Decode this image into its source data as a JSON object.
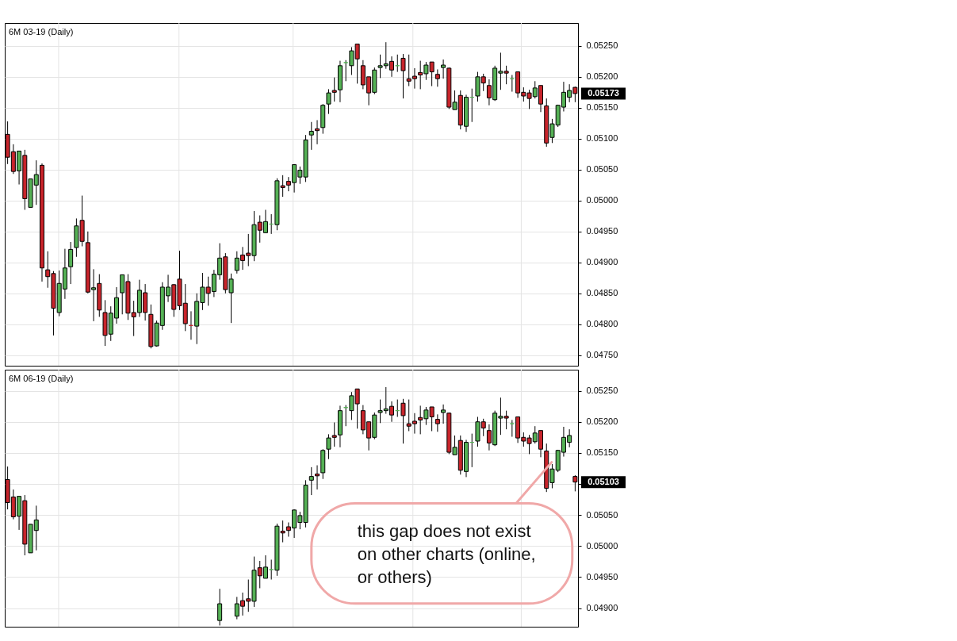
{
  "chart_data": [
    {
      "type": "candlestick",
      "title": "6M 03-19 (Daily)",
      "categories": [
        null,
        null,
        null,
        null,
        null,
        null,
        null,
        null,
        null,
        null,
        null,
        null,
        null,
        null,
        null,
        null,
        null,
        null,
        null,
        null,
        null,
        null,
        null,
        null,
        null,
        null,
        null,
        null,
        null,
        null,
        null,
        null,
        null,
        null,
        null,
        null,
        null,
        null,
        null,
        null,
        null,
        null,
        null,
        null,
        null,
        null,
        null,
        null,
        null,
        null,
        null,
        null,
        null,
        null,
        null,
        null,
        null,
        null,
        null,
        null,
        null,
        null,
        null,
        null,
        null,
        null,
        null,
        null,
        null,
        null,
        null,
        null,
        null,
        null,
        null,
        null,
        null,
        null,
        null,
        null,
        null,
        null,
        null,
        null,
        null,
        null,
        null,
        null,
        null,
        null,
        null,
        null,
        null,
        null,
        null,
        null,
        null,
        null,
        null,
        null
      ],
      "ohlc": [
        [
          0.05107,
          0.05128,
          0.05059,
          0.0507
        ],
        [
          0.05079,
          0.05091,
          0.05043,
          0.05047
        ],
        [
          0.05048,
          0.0508,
          0.05026,
          0.0508
        ],
        [
          0.05073,
          0.05082,
          0.04985,
          0.05003
        ],
        [
          0.04989,
          0.05035,
          0.04989,
          0.05035
        ],
        [
          0.05025,
          0.05065,
          0.04993,
          0.05042
        ],
        [
          0.05057,
          0.0506,
          0.04869,
          0.04891
        ],
        [
          0.04888,
          0.04918,
          0.04859,
          0.04877
        ],
        [
          0.04882,
          0.04886,
          0.04782,
          0.04826
        ],
        [
          0.04819,
          0.04887,
          0.04813,
          0.04866
        ],
        [
          0.04857,
          0.04922,
          0.04841,
          0.04891
        ],
        [
          0.04893,
          0.04933,
          0.04865,
          0.04921
        ],
        [
          0.04924,
          0.04971,
          0.04909,
          0.04959
        ],
        [
          0.04968,
          0.05008,
          0.04926,
          0.04934
        ],
        [
          0.04932,
          0.0495,
          0.0485,
          0.04852
        ],
        [
          0.04856,
          0.04889,
          0.04805,
          0.04859
        ],
        [
          0.04866,
          0.04881,
          0.04812,
          0.04823
        ],
        [
          0.04819,
          0.04839,
          0.04765,
          0.04782
        ],
        [
          0.04784,
          0.04829,
          0.04773,
          0.04818
        ],
        [
          0.0481,
          0.0486,
          0.04801,
          0.04843
        ],
        [
          0.04851,
          0.0488,
          0.04816,
          0.0488
        ],
        [
          0.04869,
          0.04881,
          0.04807,
          0.04818
        ],
        [
          0.04819,
          0.04838,
          0.04781,
          0.04812
        ],
        [
          0.04819,
          0.04872,
          0.04812,
          0.04855
        ],
        [
          0.04851,
          0.04865,
          0.04806,
          0.04819
        ],
        [
          0.04816,
          0.04832,
          0.04761,
          0.04764
        ],
        [
          0.04765,
          0.04806,
          0.04764,
          0.04802
        ],
        [
          0.04798,
          0.04868,
          0.04791,
          0.0486
        ],
        [
          0.04846,
          0.0488,
          0.04836,
          0.0486
        ],
        [
          0.04864,
          0.04865,
          0.04812,
          0.04824
        ],
        [
          0.04873,
          0.04919,
          0.04823,
          0.0483
        ],
        [
          0.04834,
          0.04865,
          0.04789,
          0.04801
        ],
        [
          0.04798,
          0.04821,
          0.04775,
          0.04798
        ],
        [
          0.04797,
          0.0485,
          0.04768,
          0.04837
        ],
        [
          0.04835,
          0.04883,
          0.04823,
          0.0486
        ],
        [
          0.0486,
          0.04877,
          0.0483,
          0.0485
        ],
        [
          0.04853,
          0.04888,
          0.04844,
          0.04881
        ],
        [
          0.0488,
          0.04931,
          0.04872,
          0.04907
        ],
        [
          0.04909,
          0.04915,
          0.0485,
          0.04856
        ],
        [
          0.04851,
          0.04882,
          0.04802,
          0.04873
        ],
        [
          0.04887,
          0.04918,
          0.04882,
          0.04907
        ],
        [
          0.04912,
          0.04925,
          0.04888,
          0.04903
        ],
        [
          0.04915,
          0.04946,
          0.04894,
          0.04911
        ],
        [
          0.04911,
          0.04983,
          0.04902,
          0.04961
        ],
        [
          0.04965,
          0.04976,
          0.04932,
          0.04952
        ],
        [
          0.04948,
          0.04985,
          0.04948,
          0.04966
        ],
        [
          0.04962,
          0.04978,
          0.04946,
          0.04962
        ],
        [
          0.04961,
          0.05036,
          0.04952,
          0.05032
        ],
        [
          0.05024,
          0.05041,
          0.05006,
          0.05021
        ],
        [
          0.05031,
          0.05038,
          0.05015,
          0.05025
        ],
        [
          0.05029,
          0.05059,
          0.05013,
          0.05058
        ],
        [
          0.05038,
          0.05055,
          0.05027,
          0.05049
        ],
        [
          0.05038,
          0.05106,
          0.0503,
          0.05098
        ],
        [
          0.05106,
          0.05127,
          0.05082,
          0.05112
        ],
        [
          0.05116,
          0.0513,
          0.05091,
          0.05113
        ],
        [
          0.05118,
          0.05156,
          0.05108,
          0.05154
        ],
        [
          0.05156,
          0.0518,
          0.0514,
          0.05174
        ],
        [
          0.05178,
          0.05199,
          0.0516,
          0.05175
        ],
        [
          0.05179,
          0.05226,
          0.05159,
          0.05218
        ],
        [
          0.05223,
          0.05227,
          0.05193,
          0.05223
        ],
        [
          0.05218,
          0.05248,
          0.05203,
          0.05242
        ],
        [
          0.05253,
          0.05253,
          0.05189,
          0.05229
        ],
        [
          0.05218,
          0.05227,
          0.0518,
          0.05187
        ],
        [
          0.052,
          0.052,
          0.05154,
          0.05174
        ],
        [
          0.05175,
          0.05215,
          0.05172,
          0.05211
        ],
        [
          0.05215,
          0.05236,
          0.05198,
          0.05218
        ],
        [
          0.05218,
          0.05256,
          0.05213,
          0.05221
        ],
        [
          0.05225,
          0.05233,
          0.052,
          0.05211
        ],
        [
          0.05218,
          0.05236,
          0.05208,
          0.05218
        ],
        [
          0.0523,
          0.05237,
          0.05165,
          0.0521
        ],
        [
          0.05197,
          0.05236,
          0.05185,
          0.05193
        ],
        [
          0.05201,
          0.05214,
          0.05181,
          0.05197
        ],
        [
          0.05207,
          0.05226,
          0.0518,
          0.05203
        ],
        [
          0.05205,
          0.05224,
          0.05195,
          0.05219
        ],
        [
          0.05224,
          0.05224,
          0.05185,
          0.05208
        ],
        [
          0.05204,
          0.05212,
          0.05184,
          0.05197
        ],
        [
          0.05215,
          0.05228,
          0.05197,
          0.05219
        ],
        [
          0.05214,
          0.05215,
          0.05148,
          0.05151
        ],
        [
          0.05147,
          0.05178,
          0.05147,
          0.05159
        ],
        [
          0.0517,
          0.05178,
          0.05115,
          0.05122
        ],
        [
          0.0512,
          0.05171,
          0.05111,
          0.05167
        ],
        [
          0.05167,
          0.05181,
          0.05127,
          0.05167
        ],
        [
          0.05169,
          0.05208,
          0.0516,
          0.052
        ],
        [
          0.052,
          0.05205,
          0.05177,
          0.0519
        ],
        [
          0.05186,
          0.05196,
          0.05154,
          0.05166
        ],
        [
          0.05163,
          0.05218,
          0.05161,
          0.05214
        ],
        [
          0.05206,
          0.05239,
          0.05179,
          0.05209
        ],
        [
          0.05209,
          0.05218,
          0.05188,
          0.05206
        ],
        [
          0.05197,
          0.05203,
          0.05176,
          0.05197
        ],
        [
          0.05208,
          0.05208,
          0.05166,
          0.05174
        ],
        [
          0.05175,
          0.05183,
          0.0516,
          0.05169
        ],
        [
          0.05174,
          0.05179,
          0.05148,
          0.05165
        ],
        [
          0.05168,
          0.05193,
          0.05165,
          0.05182
        ],
        [
          0.05186,
          0.05186,
          0.05143,
          0.05156
        ],
        [
          0.05153,
          0.05165,
          0.05087,
          0.05093
        ],
        [
          0.05102,
          0.05132,
          0.05093,
          0.05124
        ],
        [
          0.05122,
          0.05155,
          0.05119,
          0.05154
        ],
        [
          0.05151,
          0.05192,
          0.05144,
          0.05175
        ],
        [
          0.05167,
          0.05188,
          0.05159,
          0.05178
        ],
        [
          0.05183,
          0.05184,
          0.05159,
          0.05173
        ]
      ],
      "colors": [
        "#c8242b",
        "#c8242b",
        "#55b155",
        "#c8242b",
        "#55b155",
        "#55b155",
        "#c8242b",
        "#c8242b",
        "#c8242b",
        "#55b155",
        "#55b155",
        "#55b155",
        "#55b155",
        "#c8242b",
        "#c8242b",
        "#55b155",
        "#c8242b",
        "#c8242b",
        "#55b155",
        "#55b155",
        "#55b155",
        "#c8242b",
        "#c8242b",
        "#55b155",
        "#c8242b",
        "#c8242b",
        "#55b155",
        "#55b155",
        "#55b155",
        "#c8242b",
        "#c8242b",
        "#c8242b",
        "#c8242b",
        "#55b155",
        "#55b155",
        "#c8242b",
        "#55b155",
        "#55b155",
        "#c8242b",
        "#55b155",
        "#55b155",
        "#c8242b",
        "#c8242b",
        "#55b155",
        "#c8242b",
        "#55b155",
        "#55b155",
        "#55b155",
        "#c8242b",
        "#c8242b",
        "#55b155",
        "#55b155",
        "#55b155",
        "#55b155",
        "#c8242b",
        "#55b155",
        "#55b155",
        "#c8242b",
        "#55b155",
        "#55b155",
        "#55b155",
        "#c8242b",
        "#c8242b",
        "#c8242b",
        "#55b155",
        "#55b155",
        "#55b155",
        "#c8242b",
        "#55b155",
        "#c8242b",
        "#c8242b",
        "#c8242b",
        "#c8242b",
        "#55b155",
        "#c8242b",
        "#c8242b",
        "#55b155",
        "#c8242b",
        "#55b155",
        "#c8242b",
        "#55b155",
        "#55b155",
        "#55b155",
        "#c8242b",
        "#c8242b",
        "#55b155",
        "#55b155",
        "#c8242b",
        "#55b155",
        "#c8242b",
        "#c8242b",
        "#c8242b",
        "#55b155",
        "#c8242b",
        "#c8242b",
        "#55b155",
        "#55b155",
        "#55b155",
        "#55b155",
        "#c8242b"
      ],
      "ylim": [
        0.04733,
        0.05287
      ],
      "yticks": [
        {
          "value": 0.0475,
          "label": "0.04750"
        },
        {
          "value": 0.048,
          "label": "0.04800"
        },
        {
          "value": 0.0485,
          "label": "0.04850"
        },
        {
          "value": 0.049,
          "label": "0.04900"
        },
        {
          "value": 0.0495,
          "label": "0.04950"
        },
        {
          "value": 0.05,
          "label": "0.05000"
        },
        {
          "value": 0.0505,
          "label": "0.05050"
        },
        {
          "value": 0.051,
          "label": "0.05100"
        },
        {
          "value": 0.0515,
          "label": "0.05150"
        },
        {
          "value": 0.052,
          "label": "0.05200"
        },
        {
          "value": 0.0525,
          "label": "0.05250"
        }
      ],
      "grid": true,
      "tick_labels": "y",
      "annotations": [
        "0.05173"
      ]
    },
    {
      "type": "candlestick",
      "title": "6M 06-19 (Daily)",
      "categories": [
        null,
        null,
        null,
        null,
        null,
        null,
        null,
        null,
        null,
        null,
        null,
        null,
        null,
        null,
        null,
        null,
        null,
        null,
        null,
        null,
        null,
        null,
        null,
        null,
        null,
        null,
        null,
        null,
        null,
        null,
        null,
        null,
        null,
        null,
        null,
        null,
        null,
        null,
        null,
        null,
        null,
        null,
        null,
        null,
        null,
        null,
        null,
        null,
        null,
        null,
        null,
        null,
        null,
        null,
        null,
        null,
        null,
        null,
        null,
        null,
        null,
        null,
        null,
        null,
        null,
        null,
        null,
        null,
        null,
        null,
        null,
        null,
        null,
        null,
        null,
        null,
        null,
        null,
        null,
        null,
        null,
        null,
        null,
        null,
        null,
        null,
        null,
        null,
        null,
        null,
        null,
        null,
        null,
        null,
        null,
        null,
        null,
        null,
        null,
        null
      ],
      "ohlc": [
        [
          0.05107,
          0.05128,
          0.05059,
          0.0507
        ],
        [
          0.05079,
          0.05091,
          0.05043,
          0.05047
        ],
        [
          0.05048,
          0.0508,
          0.05026,
          0.0508
        ],
        [
          0.05073,
          0.05082,
          0.04985,
          0.05003
        ],
        [
          0.04989,
          0.05035,
          0.04989,
          0.05035
        ],
        [
          0.05025,
          0.05065,
          0.04993,
          0.05042
        ],
        null,
        null,
        null,
        null,
        null,
        null,
        null,
        null,
        null,
        null,
        null,
        null,
        null,
        null,
        null,
        null,
        null,
        null,
        null,
        null,
        null,
        null,
        null,
        null,
        null,
        null,
        null,
        null,
        null,
        null,
        null,
        [
          0.0488,
          0.04931,
          0.04872,
          0.04907
        ],
        null,
        null,
        [
          0.04887,
          0.04918,
          0.04882,
          0.04907
        ],
        [
          0.04912,
          0.04925,
          0.04888,
          0.04903
        ],
        [
          0.04915,
          0.04946,
          0.04894,
          0.04911
        ],
        [
          0.04911,
          0.04983,
          0.04902,
          0.04961
        ],
        [
          0.04965,
          0.04976,
          0.04932,
          0.04952
        ],
        [
          0.04948,
          0.04985,
          0.04948,
          0.04966
        ],
        [
          0.04962,
          0.04978,
          0.04946,
          0.04962
        ],
        [
          0.04961,
          0.05036,
          0.04952,
          0.05032
        ],
        [
          0.05024,
          0.05041,
          0.05006,
          0.05021
        ],
        [
          0.05031,
          0.05038,
          0.05015,
          0.05025
        ],
        [
          0.05029,
          0.05059,
          0.05013,
          0.05058
        ],
        [
          0.05038,
          0.05055,
          0.05027,
          0.05049
        ],
        [
          0.05038,
          0.05106,
          0.0503,
          0.05098
        ],
        [
          0.05106,
          0.05127,
          0.05082,
          0.05112
        ],
        [
          0.05116,
          0.0513,
          0.05091,
          0.05113
        ],
        [
          0.05118,
          0.05156,
          0.05108,
          0.05154
        ],
        [
          0.05156,
          0.0518,
          0.0514,
          0.05174
        ],
        [
          0.05178,
          0.05199,
          0.0516,
          0.05175
        ],
        [
          0.05179,
          0.05226,
          0.05159,
          0.05218
        ],
        [
          0.05223,
          0.05227,
          0.05193,
          0.05223
        ],
        [
          0.05218,
          0.05248,
          0.05203,
          0.05242
        ],
        [
          0.05253,
          0.05253,
          0.05189,
          0.05229
        ],
        [
          0.05218,
          0.05227,
          0.0518,
          0.05187
        ],
        [
          0.052,
          0.052,
          0.05154,
          0.05174
        ],
        [
          0.05175,
          0.05215,
          0.05172,
          0.05211
        ],
        [
          0.05215,
          0.05236,
          0.05198,
          0.05218
        ],
        [
          0.05218,
          0.05256,
          0.05213,
          0.05221
        ],
        [
          0.05225,
          0.05233,
          0.052,
          0.05211
        ],
        [
          0.05218,
          0.05236,
          0.05208,
          0.05218
        ],
        [
          0.0523,
          0.05237,
          0.05165,
          0.0521
        ],
        [
          0.05197,
          0.05236,
          0.05185,
          0.05193
        ],
        [
          0.05201,
          0.05214,
          0.05181,
          0.05197
        ],
        [
          0.05207,
          0.05226,
          0.0518,
          0.05203
        ],
        [
          0.05205,
          0.05224,
          0.05195,
          0.05219
        ],
        [
          0.05224,
          0.05224,
          0.05185,
          0.05208
        ],
        [
          0.05204,
          0.05212,
          0.05184,
          0.05197
        ],
        [
          0.05215,
          0.05228,
          0.05197,
          0.05219
        ],
        [
          0.05214,
          0.05215,
          0.05148,
          0.05151
        ],
        [
          0.05147,
          0.05178,
          0.05147,
          0.05159
        ],
        [
          0.0517,
          0.05178,
          0.05115,
          0.05122
        ],
        [
          0.0512,
          0.05171,
          0.05111,
          0.05167
        ],
        [
          0.05167,
          0.05181,
          0.05127,
          0.05167
        ],
        [
          0.05169,
          0.05208,
          0.0516,
          0.052
        ],
        [
          0.052,
          0.05205,
          0.05177,
          0.0519
        ],
        [
          0.05186,
          0.05196,
          0.05154,
          0.05166
        ],
        [
          0.05163,
          0.05218,
          0.05161,
          0.05214
        ],
        [
          0.05206,
          0.05239,
          0.05179,
          0.05209
        ],
        [
          0.05209,
          0.05218,
          0.05188,
          0.05206
        ],
        [
          0.05197,
          0.05203,
          0.05176,
          0.05197
        ],
        [
          0.05208,
          0.05208,
          0.05166,
          0.05174
        ],
        [
          0.05175,
          0.05183,
          0.0516,
          0.05169
        ],
        [
          0.05174,
          0.05179,
          0.05148,
          0.05165
        ],
        [
          0.05168,
          0.05193,
          0.05165,
          0.05182
        ],
        [
          0.05186,
          0.05186,
          0.05143,
          0.05156
        ],
        [
          0.05153,
          0.05165,
          0.05087,
          0.05093
        ],
        [
          0.05102,
          0.05132,
          0.05093,
          0.05124
        ],
        [
          0.05122,
          0.05155,
          0.05119,
          0.05154
        ],
        [
          0.05151,
          0.05192,
          0.05144,
          0.05175
        ],
        [
          0.05167,
          0.05188,
          0.05159,
          0.05178
        ],
        [
          0.05112,
          0.05114,
          0.05088,
          0.05103
        ]
      ],
      "colors": [
        "#c8242b",
        "#c8242b",
        "#55b155",
        "#c8242b",
        "#55b155",
        "#55b155",
        "#c8242b",
        "#c8242b",
        "#c8242b",
        "#55b155",
        "#55b155",
        "#55b155",
        "#55b155",
        "#c8242b",
        "#c8242b",
        "#55b155",
        "#c8242b",
        "#c8242b",
        "#55b155",
        "#55b155",
        "#55b155",
        "#c8242b",
        "#c8242b",
        "#55b155",
        "#c8242b",
        "#c8242b",
        "#55b155",
        "#55b155",
        "#55b155",
        "#c8242b",
        "#c8242b",
        "#c8242b",
        "#c8242b",
        "#55b155",
        "#55b155",
        "#c8242b",
        "#55b155",
        "#55b155",
        "#c8242b",
        "#55b155",
        "#55b155",
        "#c8242b",
        "#c8242b",
        "#55b155",
        "#c8242b",
        "#55b155",
        "#55b155",
        "#55b155",
        "#c8242b",
        "#c8242b",
        "#55b155",
        "#55b155",
        "#55b155",
        "#55b155",
        "#c8242b",
        "#55b155",
        "#55b155",
        "#c8242b",
        "#55b155",
        "#55b155",
        "#55b155",
        "#c8242b",
        "#c8242b",
        "#c8242b",
        "#55b155",
        "#55b155",
        "#55b155",
        "#c8242b",
        "#55b155",
        "#c8242b",
        "#c8242b",
        "#c8242b",
        "#c8242b",
        "#55b155",
        "#c8242b",
        "#c8242b",
        "#55b155",
        "#c8242b",
        "#55b155",
        "#c8242b",
        "#55b155",
        "#55b155",
        "#55b155",
        "#c8242b",
        "#c8242b",
        "#55b155",
        "#55b155",
        "#c8242b",
        "#55b155",
        "#c8242b",
        "#c8242b",
        "#c8242b",
        "#55b155",
        "#c8242b",
        "#c8242b",
        "#55b155",
        "#55b155",
        "#55b155",
        "#55b155",
        "#c8242b"
      ],
      "ylim": [
        0.0487,
        0.05284
      ],
      "yticks": [
        {
          "value": 0.049,
          "label": "0.04900"
        },
        {
          "value": 0.0495,
          "label": "0.04950"
        },
        {
          "value": 0.05,
          "label": "0.05000"
        },
        {
          "value": 0.0505,
          "label": "0.05050"
        },
        {
          "value": 0.051,
          "label": null
        },
        {
          "value": 0.0515,
          "label": "0.05150"
        },
        {
          "value": 0.052,
          "label": "0.05200"
        },
        {
          "value": 0.0525,
          "label": "0.05250"
        }
      ],
      "grid": true,
      "tick_labels": "y",
      "annotations": [
        "0.05103",
        "this gap does not exist on other charts (online, or others)"
      ]
    }
  ]
}
